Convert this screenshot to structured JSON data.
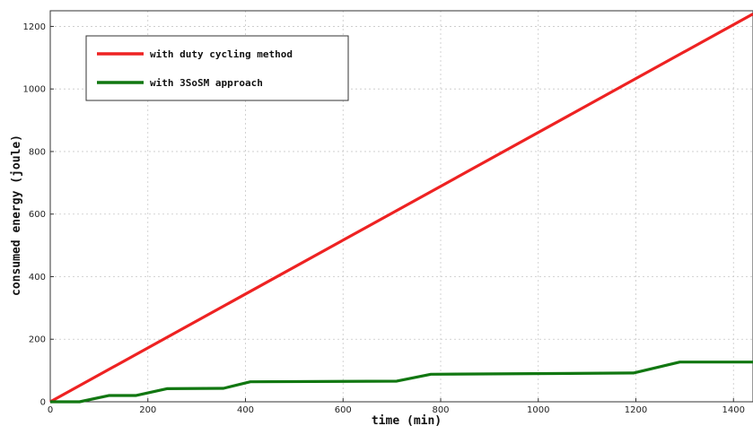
{
  "chart_data": {
    "type": "line",
    "title": "",
    "xlabel": "time (min)",
    "ylabel": "consumed energy (joule)",
    "xlim": [
      0,
      1440
    ],
    "ylim": [
      0,
      1250
    ],
    "xticks": [
      0,
      200,
      400,
      600,
      800,
      1000,
      1200,
      1400
    ],
    "yticks": [
      0,
      200,
      400,
      600,
      800,
      1000,
      1200
    ],
    "grid": true,
    "legend_position": "top-left",
    "series": [
      {
        "name": "with duty cycling method",
        "color": "#ee2222",
        "x": [
          0,
          1440
        ],
        "y": [
          0,
          1240
        ]
      },
      {
        "name": "with 3SoSM approach",
        "color": "#117711",
        "x": [
          0,
          60,
          120,
          175,
          240,
          355,
          410,
          710,
          780,
          1195,
          1290,
          1440
        ],
        "y": [
          0,
          0,
          20,
          20,
          42,
          43,
          64,
          66,
          88,
          92,
          127,
          127
        ]
      }
    ]
  }
}
